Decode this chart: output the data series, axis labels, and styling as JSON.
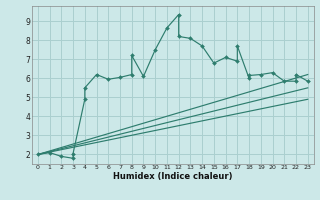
{
  "title": "",
  "xlabel": "Humidex (Indice chaleur)",
  "bg_color": "#cce8e8",
  "grid_color": "#aacfcf",
  "line_color": "#2e7d6e",
  "xlim": [
    -0.5,
    23.5
  ],
  "ylim": [
    1.5,
    9.8
  ],
  "xticks": [
    0,
    1,
    2,
    3,
    4,
    5,
    6,
    7,
    8,
    9,
    10,
    11,
    12,
    13,
    14,
    15,
    16,
    17,
    18,
    19,
    20,
    21,
    22,
    23
  ],
  "yticks": [
    2,
    3,
    4,
    5,
    6,
    7,
    8,
    9
  ],
  "main_x": [
    0,
    1,
    2,
    3,
    3,
    4,
    4,
    5,
    6,
    7,
    8,
    8,
    9,
    10,
    11,
    12,
    12,
    13,
    14,
    15,
    16,
    17,
    17,
    18,
    18,
    19,
    20,
    21,
    22,
    22,
    23
  ],
  "main_y": [
    2.0,
    2.1,
    1.9,
    1.8,
    2.05,
    4.9,
    5.5,
    6.2,
    5.95,
    6.05,
    6.2,
    7.2,
    6.1,
    7.5,
    8.65,
    9.35,
    8.2,
    8.1,
    7.7,
    6.8,
    7.1,
    6.9,
    7.7,
    6.0,
    6.15,
    6.2,
    6.3,
    5.85,
    5.85,
    6.2,
    5.85
  ],
  "trend1_x": [
    0,
    23
  ],
  "trend1_y": [
    2.0,
    6.2
  ],
  "trend2_x": [
    0,
    23
  ],
  "trend2_y": [
    2.0,
    5.5
  ],
  "trend3_x": [
    0,
    23
  ],
  "trend3_y": [
    2.0,
    4.9
  ]
}
